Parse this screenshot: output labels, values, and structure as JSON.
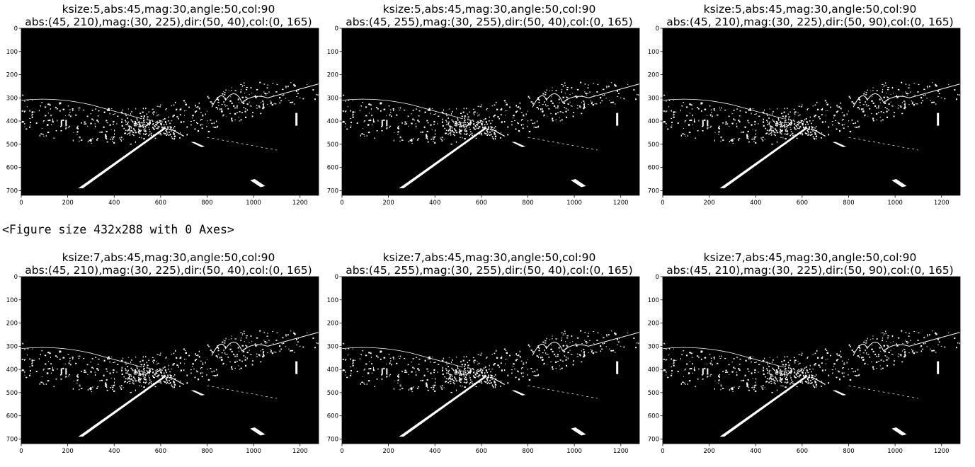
{
  "rows": [
    {
      "plots": [
        {
          "title_line1": "ksize:5,abs:45,mag:30,angle:50,col:90",
          "title_line2": "abs:(45, 210),mag:(30, 225),dir:(50, 40),col:(0, 165)",
          "image_alt": "binary edge mask of road with lane lines"
        },
        {
          "title_line1": "ksize:5,abs:45,mag:30,angle:50,col:90",
          "title_line2": "abs:(45, 255),mag:(30, 255),dir:(50, 40),col:(0, 165)",
          "image_alt": "binary edge mask of road with lane lines"
        },
        {
          "title_line1": "ksize:5,abs:45,mag:30,angle:50,col:90",
          "title_line2": "abs:(45, 210),mag:(30, 225),dir:(50, 90),col:(0, 165)",
          "image_alt": "binary edge mask of road with lane lines"
        }
      ]
    },
    {
      "plots": [
        {
          "title_line1": "ksize:7,abs:45,mag:30,angle:50,col:90",
          "title_line2": "abs:(45, 210),mag:(30, 225),dir:(50, 40),col:(0, 165)",
          "image_alt": "binary edge mask of road with lane lines"
        },
        {
          "title_line1": "ksize:7,abs:45,mag:30,angle:50,col:90",
          "title_line2": "abs:(45, 255),mag:(30, 255),dir:(50, 40),col:(0, 165)",
          "image_alt": "binary edge mask of road with lane lines"
        },
        {
          "title_line1": "ksize:7,abs:45,mag:30,angle:50,col:90",
          "title_line2": "abs:(45, 210),mag:(30, 225),dir:(50, 90),col:(0, 165)",
          "image_alt": "binary edge mask of road with lane lines"
        }
      ]
    }
  ],
  "x_ticks": [
    "0",
    "200",
    "400",
    "600",
    "800",
    "1000",
    "1200"
  ],
  "y_ticks": [
    "0",
    "100",
    "200",
    "300",
    "400",
    "500",
    "600",
    "700"
  ],
  "figure_repr": "<Figure size 432x288 with 0 Axes>",
  "colors": {
    "background": "#ffffff",
    "image_bg": "#000000",
    "edges": "#ffffff"
  }
}
